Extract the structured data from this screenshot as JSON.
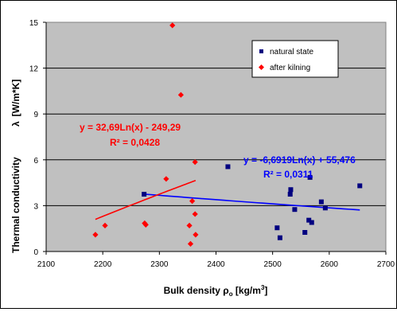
{
  "chart_data": {
    "type": "scatter",
    "xlabel": "Bulk density ρ",
    "xlabel_sub": "o",
    "xlabel_unit": " [kg/m",
    "xlabel_sup": "3",
    "xlabel_end": "]",
    "ylabel": "Thermal conductivity",
    "ylabel_symbol": "λ",
    "ylabel_unit": "[W/m*K]",
    "xlim": [
      2100,
      2700
    ],
    "ylim": [
      0,
      15
    ],
    "xticks": [
      "2100",
      "2200",
      "2300",
      "2400",
      "2500",
      "2600",
      "2700"
    ],
    "yticks": [
      "0",
      "3",
      "6",
      "9",
      "12",
      "15"
    ],
    "grid": "horizontal",
    "plot_background": "#c0c0c0",
    "legend_position": "top-right",
    "series": [
      {
        "name": "natural state",
        "color": "#000080",
        "marker": "square",
        "points": [
          [
            2273,
            3.75
          ],
          [
            2421,
            5.55
          ],
          [
            2508,
            1.55
          ],
          [
            2513,
            0.9
          ],
          [
            2531,
            3.75
          ],
          [
            2532,
            4.05
          ],
          [
            2539,
            2.75
          ],
          [
            2557,
            1.25
          ],
          [
            2564,
            2.05
          ],
          [
            2566,
            4.85
          ],
          [
            2569,
            1.9
          ],
          [
            2586,
            3.25
          ],
          [
            2593,
            2.85
          ],
          [
            2654,
            4.3
          ]
        ],
        "trendline": {
          "equation": "y = -6,6919Ln(x) + 55,476",
          "r2": "R² = 0,0311",
          "color": "#0000ff",
          "x_range": [
            2273,
            2654
          ],
          "a": -6.6919,
          "b": 55.476
        }
      },
      {
        "name": "after kilning",
        "color": "#ff0000",
        "marker": "diamond",
        "points": [
          [
            2187,
            1.1
          ],
          [
            2204,
            1.7
          ],
          [
            2274,
            1.85
          ],
          [
            2276,
            1.75
          ],
          [
            2312,
            4.75
          ],
          [
            2323,
            14.8
          ],
          [
            2338,
            10.25
          ],
          [
            2353,
            1.7
          ],
          [
            2355,
            0.5
          ],
          [
            2358,
            3.3
          ],
          [
            2363,
            5.85
          ],
          [
            2363,
            2.45
          ],
          [
            2364,
            1.1
          ]
        ],
        "trendline": {
          "equation": "y = 32,69Ln(x) - 249,29",
          "r2": "R² = 0,0428",
          "color": "#ff0000",
          "x_range": [
            2187,
            2364
          ],
          "a": 32.69,
          "b": -249.29
        }
      }
    ]
  }
}
